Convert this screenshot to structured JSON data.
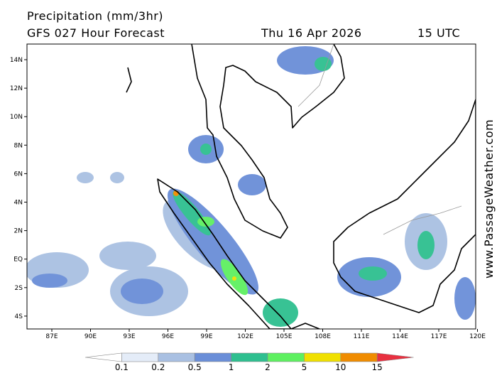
{
  "header": {
    "title": "Precipitation (mm/3hr)",
    "model": "GFS 027 Hour Forecast",
    "date": "Thu 16 Apr 2026",
    "time": "15 UTC"
  },
  "map": {
    "lat_labels": [
      "14N",
      "12N",
      "10N",
      "8N",
      "6N",
      "4N",
      "2N",
      "EQ",
      "2S",
      "4S"
    ],
    "lon_labels": [
      "87E",
      "90E",
      "93E",
      "96E",
      "99E",
      "102E",
      "105E",
      "108E",
      "111E",
      "114E",
      "117E",
      "120E"
    ]
  },
  "colorbar": {
    "labels": [
      "0.1",
      "0.2",
      "0.5",
      "1",
      "2",
      "5",
      "10",
      "15"
    ],
    "colors": [
      "#ffffff",
      "#e4ecf8",
      "#a9c0e2",
      "#6a8ed8",
      "#2ebf8f",
      "#5ef060",
      "#f0e000",
      "#f08c00",
      "#e83040"
    ]
  },
  "watermark": "www.PassageWeather.com"
}
